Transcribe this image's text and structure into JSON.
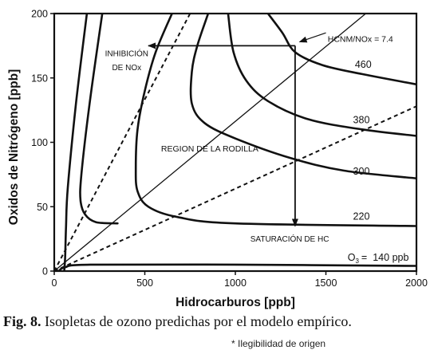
{
  "chart_data": {
    "type": "line",
    "title": "",
    "xlabel": "Hidrocarburos [ppb]",
    "ylabel": "Oxidos de Nitrógeno [ppb]",
    "xlim": [
      0,
      2000
    ],
    "ylim": [
      0,
      200
    ],
    "xticks": [
      0,
      500,
      1000,
      1500,
      2000
    ],
    "yticks": [
      0,
      50,
      100,
      150,
      200
    ],
    "grid": false,
    "isopleths": [
      {
        "label": "460",
        "points": [
          [
            1180,
            200
          ],
          [
            1260,
            185
          ],
          [
            1330,
            170
          ],
          [
            1480,
            160
          ],
          [
            1700,
            153
          ],
          [
            2000,
            145
          ]
        ]
      },
      {
        "label": "380",
        "points": [
          [
            960,
            200
          ],
          [
            990,
            170
          ],
          [
            1060,
            148
          ],
          [
            1180,
            132
          ],
          [
            1400,
            118
          ],
          [
            1700,
            110
          ],
          [
            2000,
            105
          ]
        ]
      },
      {
        "label": "300",
        "points": [
          [
            850,
            200
          ],
          [
            790,
            175
          ],
          [
            760,
            155
          ],
          [
            760,
            130
          ],
          [
            830,
            115
          ],
          [
            1000,
            103
          ],
          [
            1300,
            88
          ],
          [
            1600,
            78
          ],
          [
            2000,
            72
          ]
        ]
      },
      {
        "label": "220",
        "points": [
          [
            650,
            200
          ],
          [
            560,
            170
          ],
          [
            500,
            140
          ],
          [
            460,
            110
          ],
          [
            450,
            80
          ],
          [
            460,
            62
          ],
          [
            520,
            50
          ],
          [
            680,
            42
          ],
          [
            1000,
            37
          ],
          [
            2000,
            35
          ]
        ]
      },
      {
        "label": "",
        "points": [
          [
            265,
            200
          ],
          [
            195,
            130
          ],
          [
            150,
            75
          ],
          [
            145,
            55
          ],
          [
            170,
            44
          ],
          [
            230,
            38
          ],
          [
            350,
            37
          ]
        ]
      },
      {
        "label": "",
        "points": [
          [
            180,
            200
          ],
          [
            120,
            130
          ],
          [
            75,
            65
          ],
          [
            65,
            35
          ],
          [
            60,
            10
          ],
          [
            55,
            0
          ]
        ]
      },
      {
        "label": "140 ppb",
        "points": [
          [
            25,
            0
          ],
          [
            60,
            3
          ],
          [
            200,
            5
          ],
          [
            1000,
            5
          ],
          [
            2000,
            4
          ]
        ]
      }
    ],
    "ridge_line": {
      "points": [
        [
          0,
          0
        ],
        [
          1720,
          200
        ]
      ]
    },
    "dashed_lines": [
      {
        "points": [
          [
            0,
            0
          ],
          [
            750,
            200
          ]
        ]
      },
      {
        "points": [
          [
            0,
            0
          ],
          [
            2000,
            128
          ]
        ]
      }
    ],
    "labels": {
      "inhibition": [
        "INHIBICIÓN",
        "DE NOx"
      ],
      "ridge": "REGION DE LA RODILLA",
      "saturation": "SATURACIÓN  DE  HC",
      "ratio": "HCNM/NOx = 7.4",
      "o3_prefix": "O",
      "o3_sub": "3",
      "o3_eq": "="
    },
    "arrow_point": [
      1330,
      175
    ],
    "arrow_inhibition_end": [
      520,
      175
    ],
    "arrow_saturation_end": [
      1330,
      35
    ]
  },
  "caption": {
    "fig_label": "Fig. 8.",
    "text": " Isopletas de ozono predichas por el modelo empírico."
  },
  "note": "* Ilegibilidad de origen"
}
